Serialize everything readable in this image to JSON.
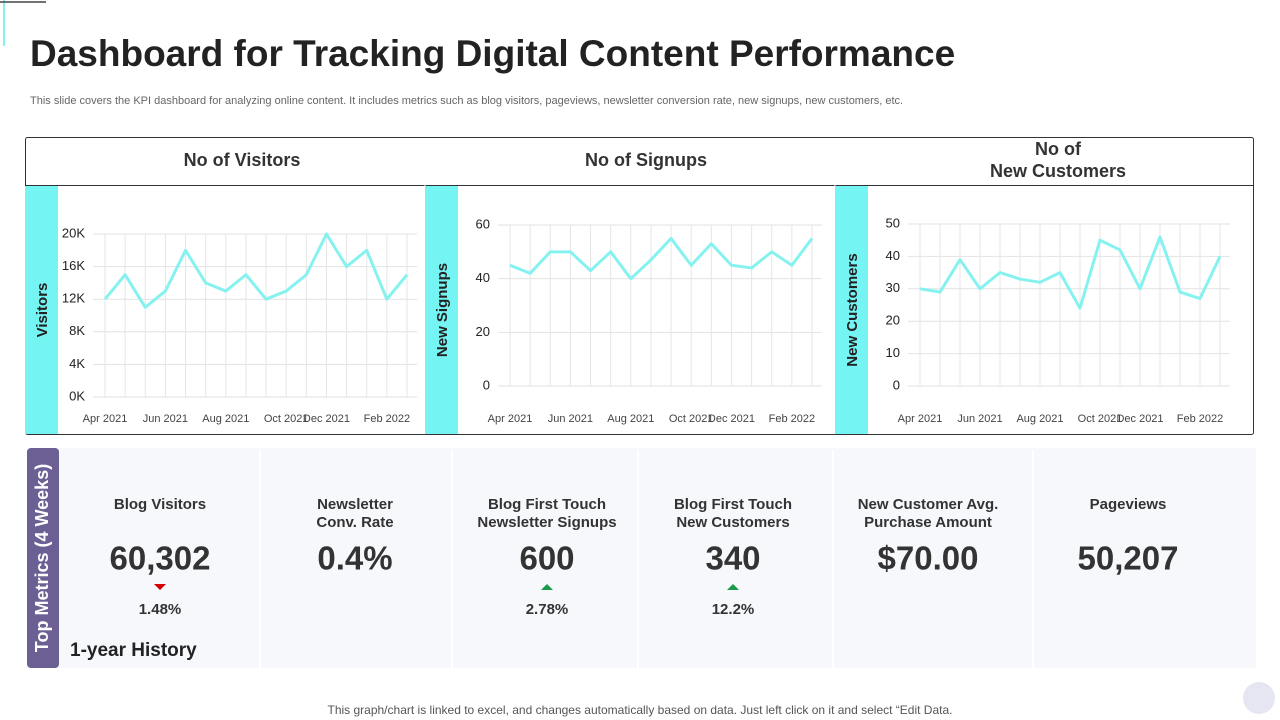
{
  "title": "Dashboard for Tracking Digital Content Performance",
  "subtitle": "This slide covers the KPI dashboard for analyzing online content. It includes metrics such as blog visitors, pageviews, newsletter conversion rate, new signups, new customers, etc.",
  "footer": "This graph/chart is linked to excel,  and changes automatically based on data. Just left click on it and select “Edit Data.",
  "chart_data": [
    {
      "type": "line",
      "title": "No of Visitors",
      "y_label": "Visitors",
      "color": "#86f2f0",
      "grid": true,
      "categories": [
        "Apr 2021",
        null,
        null,
        "Jun 2021",
        null,
        null,
        "Aug 2021",
        null,
        null,
        "Oct 2021",
        null,
        "Dec 2021",
        null,
        null,
        "Feb 2022",
        null
      ],
      "values": [
        12000,
        15000,
        11000,
        13000,
        18000,
        14000,
        13000,
        15000,
        12000,
        13000,
        15000,
        20000,
        16000,
        18000,
        12000,
        15000
      ],
      "ylim": [
        0,
        20000
      ],
      "yticks": [
        {
          "value": 0,
          "label": "0K"
        },
        {
          "value": 4000,
          "label": "4K"
        },
        {
          "value": 8000,
          "label": "8K"
        },
        {
          "value": 12000,
          "label": "12K"
        },
        {
          "value": 16000,
          "label": "16K"
        },
        {
          "value": 20000,
          "label": "20K"
        }
      ]
    },
    {
      "type": "line",
      "title": "No of Signups",
      "y_label": "New Signups",
      "color": "#86f2f0",
      "grid": true,
      "categories": [
        "Apr 2021",
        null,
        null,
        "Jun 2021",
        null,
        null,
        "Aug 2021",
        null,
        null,
        "Oct 2021",
        null,
        "Dec 2021",
        null,
        null,
        "Feb 2022",
        null
      ],
      "values": [
        45,
        42,
        50,
        50,
        43,
        50,
        40,
        47,
        55,
        45,
        53,
        45,
        44,
        50,
        45,
        55
      ],
      "ylim": [
        0,
        60
      ],
      "yticks": [
        0,
        20,
        40,
        60
      ]
    },
    {
      "type": "line",
      "title": "No of\nNew Customers",
      "y_label": "New Customers",
      "color": "#86f2f0",
      "grid": true,
      "categories": [
        "Apr 2021",
        null,
        null,
        "Jun 2021",
        null,
        null,
        "Aug 2021",
        null,
        null,
        "Oct 2021",
        null,
        "Dec 2021",
        null,
        null,
        "Feb 2022",
        null
      ],
      "values": [
        30,
        29,
        39,
        30,
        35,
        33,
        32,
        35,
        24,
        45,
        42,
        30,
        46,
        29,
        27,
        40
      ],
      "ylim": [
        0,
        50
      ],
      "yticks": [
        0,
        10,
        20,
        30,
        40,
        50
      ]
    }
  ],
  "metrics": {
    "tab_label": "Top Metrics (4 Weeks)",
    "history": "1-year History",
    "items": [
      {
        "label": "Blog Visitors",
        "value": "60,302",
        "change": "1.48%",
        "trend": "down"
      },
      {
        "label": "Newsletter\nConv. Rate",
        "value": "0.4%"
      },
      {
        "label": "Blog First Touch\nNewsletter Signups",
        "value": "600",
        "change": "2.78%",
        "trend": "up"
      },
      {
        "label": "Blog First Touch\nNew Customers",
        "value": "340",
        "change": "12.2%",
        "trend": "up"
      },
      {
        "label": "New Customer Avg.\nPurchase Amount",
        "value": "$70.00"
      },
      {
        "label": "Pageviews",
        "value": "50,207"
      }
    ]
  }
}
